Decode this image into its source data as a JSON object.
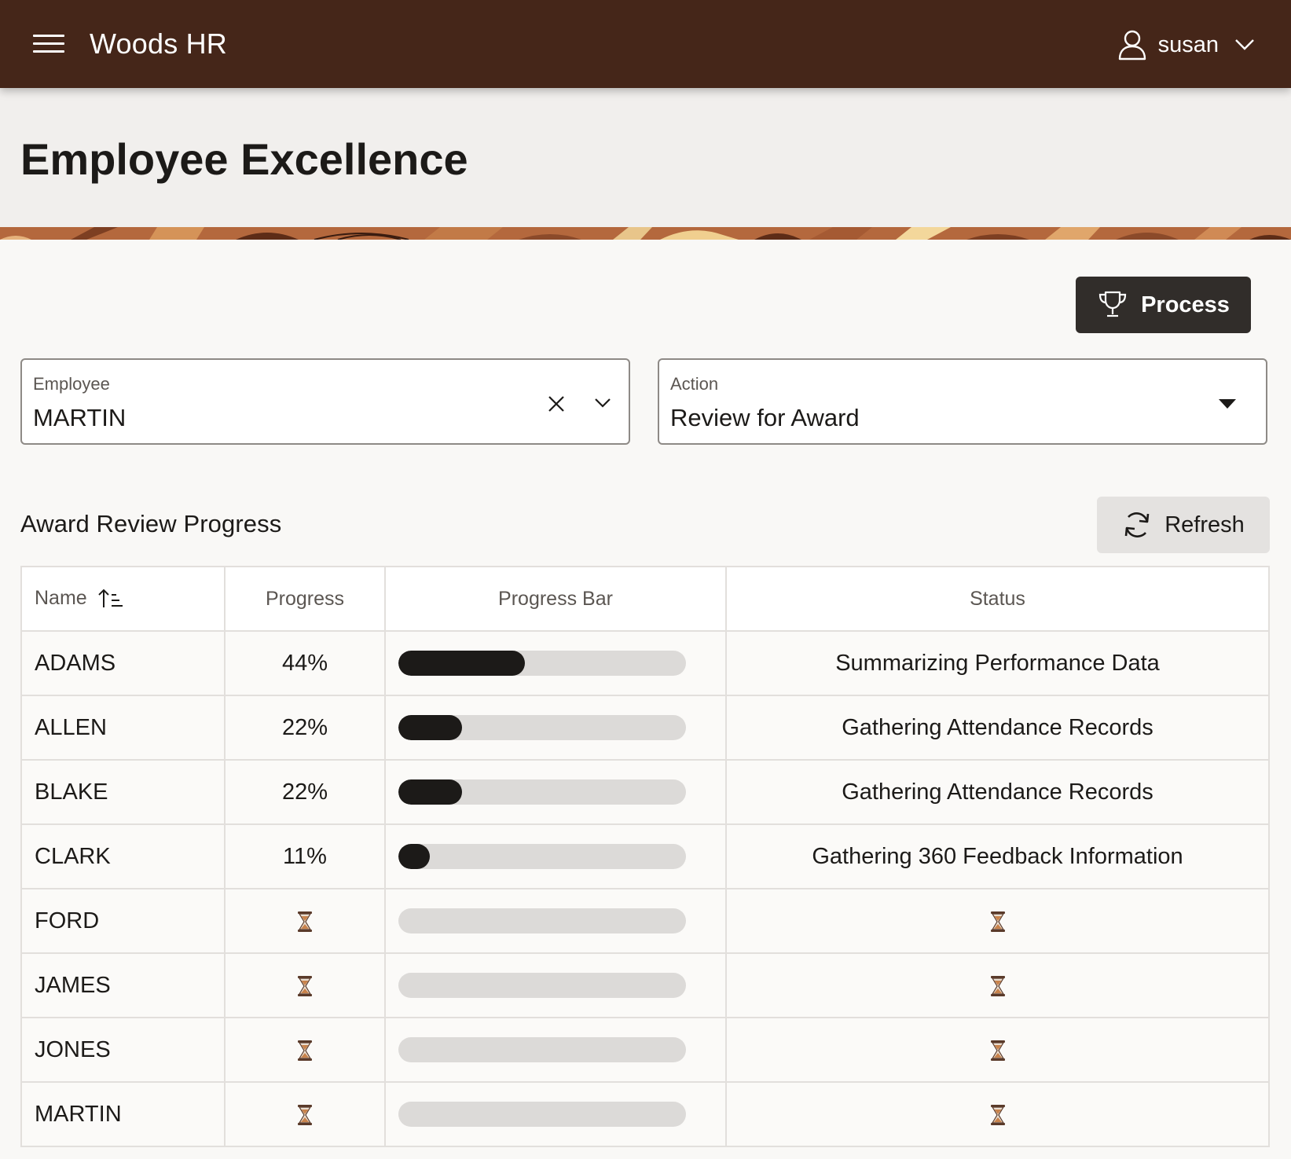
{
  "app": {
    "title": "Woods HR",
    "brand_color": "#452619"
  },
  "user": {
    "name": "susan"
  },
  "page": {
    "title": "Employee Excellence"
  },
  "toolbar": {
    "process_label": "Process"
  },
  "fields": {
    "employee": {
      "label": "Employee",
      "value": "MARTIN"
    },
    "action": {
      "label": "Action",
      "value": "Review for Award"
    }
  },
  "region": {
    "title": "Award Review Progress",
    "refresh_label": "Refresh"
  },
  "table": {
    "columns": [
      "Name",
      "Progress",
      "Progress Bar",
      "Status"
    ],
    "sort": {
      "column": "Name",
      "direction": "ascending"
    },
    "rows": [
      {
        "name": "ADAMS",
        "progress": "44%",
        "fraction": 0.44,
        "status": "Summarizing Performance Data"
      },
      {
        "name": "ALLEN",
        "progress": "22%",
        "fraction": 0.22,
        "status": "Gathering Attendance Records"
      },
      {
        "name": "BLAKE",
        "progress": "22%",
        "fraction": 0.22,
        "status": "Gathering Attendance Records"
      },
      {
        "name": "CLARK",
        "progress": "11%",
        "fraction": 0.11,
        "status": "Gathering 360 Feedback Information"
      },
      {
        "name": "FORD",
        "progress": null,
        "fraction": 0,
        "status": null,
        "pending_icon": "hourglass-icon"
      },
      {
        "name": "JAMES",
        "progress": null,
        "fraction": 0,
        "status": null,
        "pending_icon": "hourglass-icon"
      },
      {
        "name": "JONES",
        "progress": null,
        "fraction": 0,
        "status": null,
        "pending_icon": "hourglass-icon"
      },
      {
        "name": "MARTIN",
        "progress": null,
        "fraction": 0,
        "status": null,
        "pending_icon": "hourglass-icon"
      }
    ]
  },
  "icons": {
    "menu": "hamburger-icon",
    "user": "user-icon",
    "user_menu": "chevron-down-icon",
    "process": "trophy-icon",
    "clear": "close-icon",
    "employee_dropdown": "chevron-down-icon",
    "action_dropdown": "caret-down-icon",
    "refresh": "refresh-icon",
    "sort": "sort-ascending-icon"
  }
}
